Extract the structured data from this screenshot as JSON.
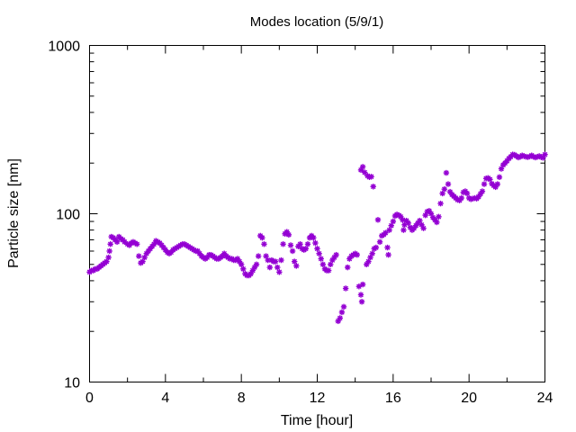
{
  "chart_data": {
    "type": "scatter",
    "title": "Modes location (5/9/1)",
    "xlabel": "Time [hour]",
    "ylabel": "Particle size [nm]",
    "xlim": [
      0,
      24
    ],
    "ylim": [
      10,
      1000
    ],
    "yscale": "log",
    "grid": false,
    "marker_color": "#9400d3",
    "x_ticks": [
      0,
      4,
      8,
      12,
      16,
      20,
      24
    ],
    "x_tick_labels": [
      "0",
      "4",
      "8",
      "12",
      "16",
      "20",
      "24"
    ],
    "y_ticks": [
      10,
      100,
      1000
    ],
    "y_tick_labels": [
      "10",
      "100",
      "1000"
    ],
    "points": [
      [
        0.0,
        45
      ],
      [
        0.1,
        46
      ],
      [
        0.2,
        46
      ],
      [
        0.3,
        47
      ],
      [
        0.4,
        47
      ],
      [
        0.5,
        48
      ],
      [
        0.6,
        49
      ],
      [
        0.7,
        50
      ],
      [
        0.8,
        51
      ],
      [
        0.9,
        52
      ],
      [
        1.0,
        55
      ],
      [
        1.05,
        60
      ],
      [
        1.1,
        66
      ],
      [
        1.15,
        73
      ],
      [
        1.25,
        72
      ],
      [
        1.35,
        70
      ],
      [
        1.45,
        68
      ],
      [
        1.55,
        73
      ],
      [
        1.65,
        71
      ],
      [
        1.75,
        70
      ],
      [
        1.85,
        68
      ],
      [
        2.0,
        66
      ],
      [
        2.1,
        65
      ],
      [
        2.2,
        67
      ],
      [
        2.3,
        68
      ],
      [
        2.4,
        67
      ],
      [
        2.5,
        66
      ],
      [
        2.6,
        56
      ],
      [
        2.7,
        51
      ],
      [
        2.8,
        52
      ],
      [
        2.9,
        55
      ],
      [
        3.0,
        58
      ],
      [
        3.1,
        60
      ],
      [
        3.2,
        62
      ],
      [
        3.3,
        64
      ],
      [
        3.4,
        66
      ],
      [
        3.5,
        69
      ],
      [
        3.6,
        68
      ],
      [
        3.7,
        67
      ],
      [
        3.8,
        65
      ],
      [
        3.9,
        63
      ],
      [
        4.0,
        61
      ],
      [
        4.1,
        59
      ],
      [
        4.2,
        58
      ],
      [
        4.3,
        59
      ],
      [
        4.4,
        61
      ],
      [
        4.5,
        62
      ],
      [
        4.6,
        63
      ],
      [
        4.7,
        64
      ],
      [
        4.8,
        65
      ],
      [
        4.9,
        66
      ],
      [
        5.0,
        66
      ],
      [
        5.1,
        65
      ],
      [
        5.2,
        64
      ],
      [
        5.3,
        63
      ],
      [
        5.4,
        62
      ],
      [
        5.5,
        61
      ],
      [
        5.6,
        60
      ],
      [
        5.7,
        60
      ],
      [
        5.8,
        58
      ],
      [
        5.9,
        56
      ],
      [
        6.0,
        55
      ],
      [
        6.1,
        54
      ],
      [
        6.2,
        55
      ],
      [
        6.3,
        57
      ],
      [
        6.4,
        57
      ],
      [
        6.5,
        56
      ],
      [
        6.6,
        55
      ],
      [
        6.7,
        54
      ],
      [
        6.8,
        54
      ],
      [
        6.9,
        55
      ],
      [
        7.0,
        56
      ],
      [
        7.1,
        58
      ],
      [
        7.2,
        56
      ],
      [
        7.3,
        55
      ],
      [
        7.4,
        54
      ],
      [
        7.5,
        54
      ],
      [
        7.6,
        53
      ],
      [
        7.7,
        53
      ],
      [
        7.8,
        54
      ],
      [
        7.9,
        52
      ],
      [
        8.0,
        50
      ],
      [
        8.1,
        47
      ],
      [
        8.2,
        44
      ],
      [
        8.3,
        43
      ],
      [
        8.4,
        43
      ],
      [
        8.5,
        44
      ],
      [
        8.6,
        46
      ],
      [
        8.7,
        48
      ],
      [
        8.8,
        50
      ],
      [
        8.9,
        56
      ],
      [
        9.0,
        74
      ],
      [
        9.1,
        72
      ],
      [
        9.2,
        66
      ],
      [
        9.3,
        56
      ],
      [
        9.4,
        53
      ],
      [
        9.5,
        48
      ],
      [
        9.6,
        53
      ],
      [
        9.7,
        52
      ],
      [
        9.8,
        52
      ],
      [
        9.9,
        48
      ],
      [
        10.0,
        45
      ],
      [
        10.1,
        53
      ],
      [
        10.2,
        66
      ],
      [
        10.3,
        76
      ],
      [
        10.4,
        78
      ],
      [
        10.5,
        75
      ],
      [
        10.6,
        65
      ],
      [
        10.7,
        60
      ],
      [
        10.8,
        52
      ],
      [
        10.9,
        49
      ],
      [
        11.0,
        64
      ],
      [
        11.1,
        66
      ],
      [
        11.2,
        62
      ],
      [
        11.3,
        61
      ],
      [
        11.4,
        62
      ],
      [
        11.5,
        66
      ],
      [
        11.6,
        72
      ],
      [
        11.7,
        74
      ],
      [
        11.8,
        72
      ],
      [
        11.9,
        67
      ],
      [
        12.0,
        62
      ],
      [
        12.1,
        58
      ],
      [
        12.2,
        54
      ],
      [
        12.3,
        50
      ],
      [
        12.4,
        47
      ],
      [
        12.5,
        46
      ],
      [
        12.6,
        46
      ],
      [
        12.7,
        50
      ],
      [
        12.8,
        53
      ],
      [
        12.9,
        55
      ],
      [
        13.0,
        57
      ],
      [
        13.1,
        23
      ],
      [
        13.2,
        24
      ],
      [
        13.3,
        26
      ],
      [
        13.4,
        28
      ],
      [
        13.5,
        36
      ],
      [
        13.6,
        48
      ],
      [
        13.7,
        54
      ],
      [
        13.8,
        56
      ],
      [
        13.9,
        57
      ],
      [
        14.0,
        58
      ],
      [
        14.1,
        57
      ],
      [
        14.2,
        37
      ],
      [
        14.3,
        33
      ],
      [
        14.35,
        30
      ],
      [
        14.4,
        38
      ],
      [
        14.3,
        182
      ],
      [
        14.4,
        190
      ],
      [
        14.5,
        176
      ],
      [
        14.6,
        50
      ],
      [
        14.65,
        168
      ],
      [
        14.7,
        52
      ],
      [
        14.75,
        165
      ],
      [
        14.8,
        55
      ],
      [
        14.85,
        166
      ],
      [
        14.9,
        58
      ],
      [
        14.95,
        145
      ],
      [
        15.0,
        62
      ],
      [
        15.1,
        63
      ],
      [
        15.2,
        92
      ],
      [
        15.3,
        68
      ],
      [
        15.4,
        74
      ],
      [
        15.5,
        75
      ],
      [
        15.6,
        77
      ],
      [
        15.7,
        63
      ],
      [
        15.75,
        57
      ],
      [
        15.8,
        80
      ],
      [
        15.9,
        85
      ],
      [
        16.0,
        90
      ],
      [
        16.1,
        97
      ],
      [
        16.2,
        99
      ],
      [
        16.3,
        98
      ],
      [
        16.4,
        96
      ],
      [
        16.5,
        92
      ],
      [
        16.55,
        80
      ],
      [
        16.6,
        86
      ],
      [
        16.7,
        91
      ],
      [
        16.8,
        88
      ],
      [
        16.9,
        83
      ],
      [
        17.0,
        80
      ],
      [
        17.1,
        82
      ],
      [
        17.2,
        85
      ],
      [
        17.3,
        88
      ],
      [
        17.4,
        91
      ],
      [
        17.5,
        86
      ],
      [
        17.6,
        82
      ],
      [
        17.7,
        98
      ],
      [
        17.8,
        103
      ],
      [
        17.9,
        104
      ],
      [
        18.0,
        100
      ],
      [
        18.1,
        95
      ],
      [
        18.2,
        92
      ],
      [
        18.3,
        89
      ],
      [
        18.4,
        96
      ],
      [
        18.5,
        115
      ],
      [
        18.6,
        132
      ],
      [
        18.7,
        140
      ],
      [
        18.8,
        175
      ],
      [
        18.9,
        150
      ],
      [
        19.0,
        135
      ],
      [
        19.1,
        130
      ],
      [
        19.2,
        127
      ],
      [
        19.3,
        124
      ],
      [
        19.4,
        121
      ],
      [
        19.5,
        120
      ],
      [
        19.6,
        124
      ],
      [
        19.7,
        134
      ],
      [
        19.8,
        136
      ],
      [
        19.9,
        132
      ],
      [
        20.0,
        124
      ],
      [
        20.1,
        122
      ],
      [
        20.2,
        123
      ],
      [
        20.3,
        124
      ],
      [
        20.4,
        123
      ],
      [
        20.5,
        126
      ],
      [
        20.6,
        131
      ],
      [
        20.7,
        136
      ],
      [
        20.8,
        150
      ],
      [
        20.9,
        162
      ],
      [
        21.0,
        163
      ],
      [
        21.1,
        160
      ],
      [
        21.2,
        151
      ],
      [
        21.3,
        147
      ],
      [
        21.4,
        144
      ],
      [
        21.5,
        150
      ],
      [
        21.6,
        165
      ],
      [
        21.7,
        185
      ],
      [
        21.8,
        195
      ],
      [
        21.9,
        200
      ],
      [
        22.0,
        206
      ],
      [
        22.1,
        213
      ],
      [
        22.2,
        218
      ],
      [
        22.3,
        225
      ],
      [
        22.4,
        224
      ],
      [
        22.5,
        220
      ],
      [
        22.6,
        216
      ],
      [
        22.7,
        218
      ],
      [
        22.8,
        222
      ],
      [
        22.9,
        220
      ],
      [
        23.0,
        218
      ],
      [
        23.1,
        217
      ],
      [
        23.2,
        219
      ],
      [
        23.3,
        222
      ],
      [
        23.4,
        218
      ],
      [
        23.5,
        216
      ],
      [
        23.6,
        218
      ],
      [
        23.7,
        220
      ],
      [
        23.8,
        217
      ],
      [
        23.9,
        215
      ],
      [
        24.0,
        225
      ]
    ]
  }
}
